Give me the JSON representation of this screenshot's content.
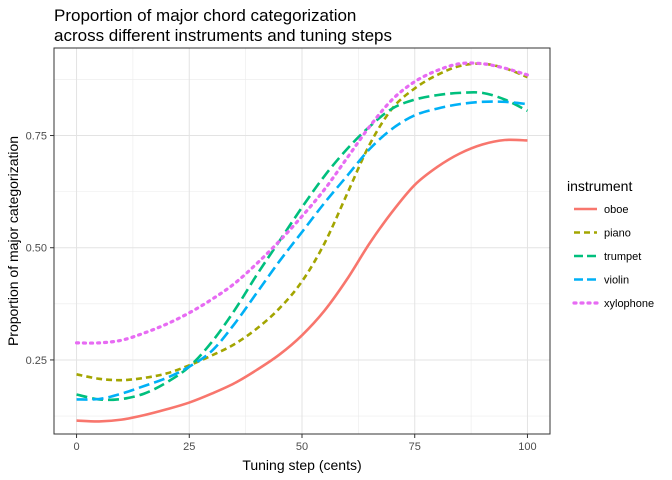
{
  "chart_data": {
    "type": "line",
    "title": "Proportion of major chord categorization\nacross different instruments and tuning steps",
    "xlabel": "Tuning step (cents)",
    "ylabel": "Proportion of major categorization",
    "xlim": [
      -5,
      105
    ],
    "ylim": [
      0.085,
      0.945
    ],
    "x_ticks": [
      0,
      25,
      50,
      75,
      100
    ],
    "x_tick_labels": [
      "0",
      "25",
      "50",
      "75",
      "100"
    ],
    "y_ticks": [
      0.25,
      0.5,
      0.75
    ],
    "y_tick_labels": [
      "0.25",
      "0.50",
      "0.75"
    ],
    "grid": true,
    "legend": {
      "title": "instrument",
      "position": "right"
    },
    "x": [
      0,
      5,
      10,
      15,
      20,
      25,
      30,
      35,
      40,
      45,
      50,
      55,
      60,
      65,
      70,
      75,
      80,
      85,
      90,
      95,
      100
    ],
    "series": [
      {
        "name": "oboe",
        "color": "#F8766D",
        "dash": "solid",
        "values": [
          0.115,
          0.113,
          0.117,
          0.127,
          0.14,
          0.155,
          0.175,
          0.198,
          0.228,
          0.262,
          0.305,
          0.36,
          0.43,
          0.51,
          0.58,
          0.64,
          0.68,
          0.71,
          0.73,
          0.74,
          0.739
        ]
      },
      {
        "name": "piano",
        "color": "#A3A500",
        "dash": "short",
        "values": [
          0.218,
          0.208,
          0.205,
          0.21,
          0.22,
          0.238,
          0.26,
          0.285,
          0.32,
          0.365,
          0.425,
          0.51,
          0.62,
          0.73,
          0.81,
          0.855,
          0.885,
          0.905,
          0.91,
          0.9,
          0.88
        ]
      },
      {
        "name": "trumpet",
        "color": "#00BF7D",
        "dash": "long",
        "values": [
          0.173,
          0.162,
          0.163,
          0.175,
          0.2,
          0.235,
          0.29,
          0.36,
          0.44,
          0.515,
          0.59,
          0.66,
          0.72,
          0.77,
          0.81,
          0.83,
          0.84,
          0.845,
          0.845,
          0.83,
          0.805
        ]
      },
      {
        "name": "violin",
        "color": "#00B0F6",
        "dash": "long",
        "values": [
          0.162,
          0.163,
          0.175,
          0.192,
          0.21,
          0.235,
          0.27,
          0.33,
          0.4,
          0.47,
          0.535,
          0.6,
          0.66,
          0.72,
          0.765,
          0.795,
          0.81,
          0.82,
          0.825,
          0.825,
          0.82
        ]
      },
      {
        "name": "xylophone",
        "color": "#E76BF3",
        "dash": "dotted",
        "values": [
          0.288,
          0.288,
          0.294,
          0.31,
          0.33,
          0.355,
          0.385,
          0.42,
          0.465,
          0.515,
          0.57,
          0.63,
          0.7,
          0.77,
          0.83,
          0.87,
          0.895,
          0.91,
          0.91,
          0.9,
          0.885
        ]
      }
    ]
  }
}
